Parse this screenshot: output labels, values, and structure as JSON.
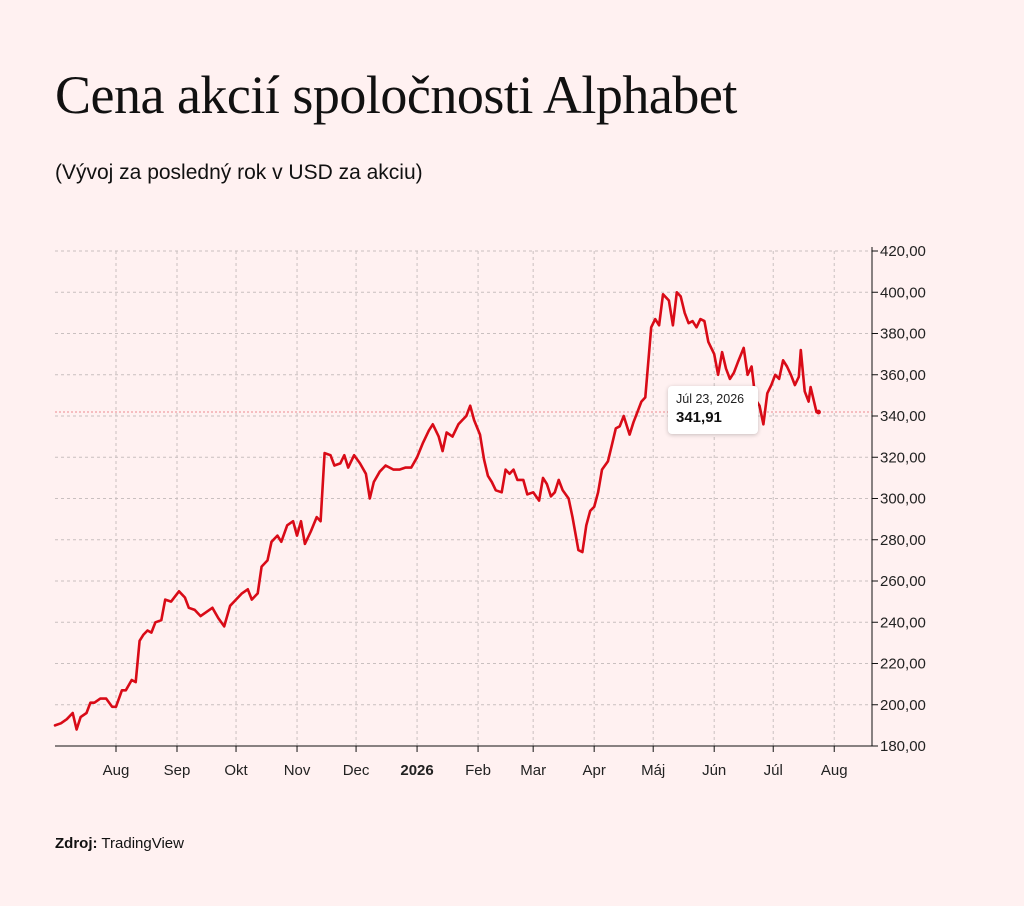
{
  "title": "Cena akcií spoločnosti Alphabet",
  "subtitle": "(Vývoj za posledný rok v USD za akciu)",
  "source": {
    "label": "Zdroj:",
    "value": "TradingView"
  },
  "tooltip": {
    "date": "Júl 23, 2026",
    "value": "341,91"
  },
  "colors": {
    "line": "#d90b17",
    "background": "#fff1f1",
    "grid": "#c9c0c0",
    "axis": "#111111"
  },
  "chart_data": {
    "type": "line",
    "title": "Cena akcií spoločnosti Alphabet",
    "subtitle": "(Vývoj za posledný rok v USD za akciu)",
    "ylim": [
      180,
      420
    ],
    "y_ticks": [
      "420,00",
      "400,00",
      "380,00",
      "360,00",
      "340,00",
      "320,00",
      "300,00",
      "280,00",
      "260,00",
      "240,00",
      "220,00",
      "200,00",
      "180,00"
    ],
    "x_ticks": [
      {
        "label": "Aug",
        "date": "2025-08-01",
        "bold": false
      },
      {
        "label": "Sep",
        "date": "2025-09-01",
        "bold": false
      },
      {
        "label": "Okt",
        "date": "2025-10-01",
        "bold": false
      },
      {
        "label": "Nov",
        "date": "2025-11-01",
        "bold": false
      },
      {
        "label": "Dec",
        "date": "2025-12-01",
        "bold": false
      },
      {
        "label": "2026",
        "date": "2026-01-01",
        "bold": true
      },
      {
        "label": "Feb",
        "date": "2026-02-01",
        "bold": false
      },
      {
        "label": "Mar",
        "date": "2026-03-01",
        "bold": false
      },
      {
        "label": "Apr",
        "date": "2026-04-01",
        "bold": false
      },
      {
        "label": "Máj",
        "date": "2026-05-01",
        "bold": false
      },
      {
        "label": "Jún",
        "date": "2026-06-01",
        "bold": false
      },
      {
        "label": "Júl",
        "date": "2026-07-01",
        "bold": false
      },
      {
        "label": "Aug",
        "date": "2026-08-01",
        "bold": false
      }
    ],
    "grid": true,
    "last_point": {
      "date": "2026-07-23",
      "value": 341.91
    },
    "series": [
      {
        "values": [
          [
            "2025-07-01",
            190
          ],
          [
            "2025-07-04",
            191
          ],
          [
            "2025-07-07",
            193
          ],
          [
            "2025-07-10",
            196
          ],
          [
            "2025-07-12",
            188
          ],
          [
            "2025-07-14",
            194
          ],
          [
            "2025-07-17",
            196
          ],
          [
            "2025-07-19",
            201
          ],
          [
            "2025-07-21",
            201
          ],
          [
            "2025-07-24",
            203
          ],
          [
            "2025-07-27",
            203
          ],
          [
            "2025-07-30",
            199
          ],
          [
            "2025-08-01",
            199
          ],
          [
            "2025-08-04",
            207
          ],
          [
            "2025-08-06",
            207
          ],
          [
            "2025-08-09",
            212
          ],
          [
            "2025-08-11",
            211
          ],
          [
            "2025-08-13",
            231
          ],
          [
            "2025-08-15",
            234
          ],
          [
            "2025-08-17",
            236
          ],
          [
            "2025-08-19",
            235
          ],
          [
            "2025-08-21",
            240
          ],
          [
            "2025-08-24",
            241
          ],
          [
            "2025-08-26",
            251
          ],
          [
            "2025-08-29",
            250
          ],
          [
            "2025-09-02",
            255
          ],
          [
            "2025-09-05",
            252
          ],
          [
            "2025-09-07",
            247
          ],
          [
            "2025-09-10",
            246
          ],
          [
            "2025-09-13",
            243
          ],
          [
            "2025-09-16",
            245
          ],
          [
            "2025-09-19",
            247
          ],
          [
            "2025-09-22",
            242
          ],
          [
            "2025-09-25",
            238
          ],
          [
            "2025-09-28",
            248
          ],
          [
            "2025-10-01",
            251
          ],
          [
            "2025-10-04",
            254
          ],
          [
            "2025-10-07",
            256
          ],
          [
            "2025-10-09",
            251
          ],
          [
            "2025-10-12",
            254
          ],
          [
            "2025-10-14",
            267
          ],
          [
            "2025-10-17",
            270
          ],
          [
            "2025-10-19",
            279
          ],
          [
            "2025-10-22",
            282
          ],
          [
            "2025-10-24",
            279
          ],
          [
            "2025-10-27",
            287
          ],
          [
            "2025-10-30",
            289
          ],
          [
            "2025-11-01",
            282
          ],
          [
            "2025-11-03",
            289
          ],
          [
            "2025-11-05",
            278
          ],
          [
            "2025-11-08",
            284
          ],
          [
            "2025-11-11",
            291
          ],
          [
            "2025-11-13",
            289
          ],
          [
            "2025-11-15",
            322
          ],
          [
            "2025-11-18",
            321
          ],
          [
            "2025-11-20",
            316
          ],
          [
            "2025-11-23",
            317
          ],
          [
            "2025-11-25",
            321
          ],
          [
            "2025-11-27",
            315
          ],
          [
            "2025-11-30",
            321
          ],
          [
            "2025-12-03",
            317
          ],
          [
            "2025-12-06",
            312
          ],
          [
            "2025-12-08",
            300
          ],
          [
            "2025-12-10",
            308
          ],
          [
            "2025-12-13",
            313
          ],
          [
            "2025-12-16",
            316
          ],
          [
            "2025-12-20",
            314
          ],
          [
            "2025-12-23",
            314
          ],
          [
            "2025-12-26",
            315
          ],
          [
            "2025-12-29",
            315
          ],
          [
            "2026-01-01",
            320
          ],
          [
            "2026-01-04",
            327
          ],
          [
            "2026-01-07",
            333
          ],
          [
            "2026-01-09",
            336
          ],
          [
            "2026-01-12",
            330
          ],
          [
            "2026-01-14",
            323
          ],
          [
            "2026-01-16",
            332
          ],
          [
            "2026-01-19",
            330
          ],
          [
            "2026-01-22",
            336
          ],
          [
            "2026-01-24",
            338
          ],
          [
            "2026-01-26",
            340
          ],
          [
            "2026-01-28",
            345
          ],
          [
            "2026-01-30",
            338
          ],
          [
            "2026-02-02",
            331
          ],
          [
            "2026-02-04",
            319
          ],
          [
            "2026-02-06",
            311
          ],
          [
            "2026-02-08",
            308
          ],
          [
            "2026-02-10",
            304
          ],
          [
            "2026-02-13",
            303
          ],
          [
            "2026-02-15",
            314
          ],
          [
            "2026-02-17",
            312
          ],
          [
            "2026-02-19",
            314
          ],
          [
            "2026-02-21",
            309
          ],
          [
            "2026-02-24",
            309
          ],
          [
            "2026-02-26",
            302
          ],
          [
            "2026-03-01",
            303
          ],
          [
            "2026-03-04",
            299
          ],
          [
            "2026-03-06",
            310
          ],
          [
            "2026-03-08",
            307
          ],
          [
            "2026-03-10",
            301
          ],
          [
            "2026-03-12",
            303
          ],
          [
            "2026-03-14",
            309
          ],
          [
            "2026-03-16",
            304
          ],
          [
            "2026-03-19",
            300
          ],
          [
            "2026-03-21",
            291
          ],
          [
            "2026-03-24",
            275
          ],
          [
            "2026-03-26",
            274
          ],
          [
            "2026-03-28",
            287
          ],
          [
            "2026-03-30",
            294
          ],
          [
            "2026-04-01",
            296
          ],
          [
            "2026-04-03",
            303
          ],
          [
            "2026-04-05",
            314
          ],
          [
            "2026-04-08",
            318
          ],
          [
            "2026-04-10",
            326
          ],
          [
            "2026-04-12",
            334
          ],
          [
            "2026-04-14",
            335
          ],
          [
            "2026-04-16",
            340
          ],
          [
            "2026-04-19",
            331
          ],
          [
            "2026-04-21",
            337
          ],
          [
            "2026-04-23",
            342
          ],
          [
            "2026-04-25",
            347
          ],
          [
            "2026-04-27",
            349
          ],
          [
            "2026-04-30",
            383
          ],
          [
            "2026-05-02",
            387
          ],
          [
            "2026-05-04",
            384
          ],
          [
            "2026-05-06",
            399
          ],
          [
            "2026-05-09",
            396
          ],
          [
            "2026-05-11",
            384
          ],
          [
            "2026-05-13",
            400
          ],
          [
            "2026-05-15",
            398
          ],
          [
            "2026-05-17",
            390
          ],
          [
            "2026-05-19",
            385
          ],
          [
            "2026-05-21",
            386
          ],
          [
            "2026-05-23",
            383
          ],
          [
            "2026-05-25",
            387
          ],
          [
            "2026-05-27",
            386
          ],
          [
            "2026-05-29",
            376
          ],
          [
            "2026-06-01",
            370
          ],
          [
            "2026-06-03",
            360
          ],
          [
            "2026-06-05",
            371
          ],
          [
            "2026-06-07",
            363
          ],
          [
            "2026-06-09",
            358
          ],
          [
            "2026-06-11",
            361
          ],
          [
            "2026-06-13",
            366
          ],
          [
            "2026-06-16",
            373
          ],
          [
            "2026-06-18",
            360
          ],
          [
            "2026-06-20",
            364
          ],
          [
            "2026-06-22",
            348
          ],
          [
            "2026-06-24",
            345
          ],
          [
            "2026-06-26",
            336
          ],
          [
            "2026-06-28",
            351
          ],
          [
            "2026-06-30",
            355
          ],
          [
            "2026-07-02",
            360
          ],
          [
            "2026-07-04",
            358
          ],
          [
            "2026-07-06",
            367
          ],
          [
            "2026-07-08",
            364
          ],
          [
            "2026-07-10",
            360
          ],
          [
            "2026-07-12",
            355
          ],
          [
            "2026-07-14",
            359
          ],
          [
            "2026-07-15",
            372
          ],
          [
            "2026-07-17",
            352
          ],
          [
            "2026-07-19",
            347
          ],
          [
            "2026-07-20",
            354
          ],
          [
            "2026-07-22",
            346
          ],
          [
            "2026-07-23",
            341.91
          ]
        ]
      }
    ]
  }
}
